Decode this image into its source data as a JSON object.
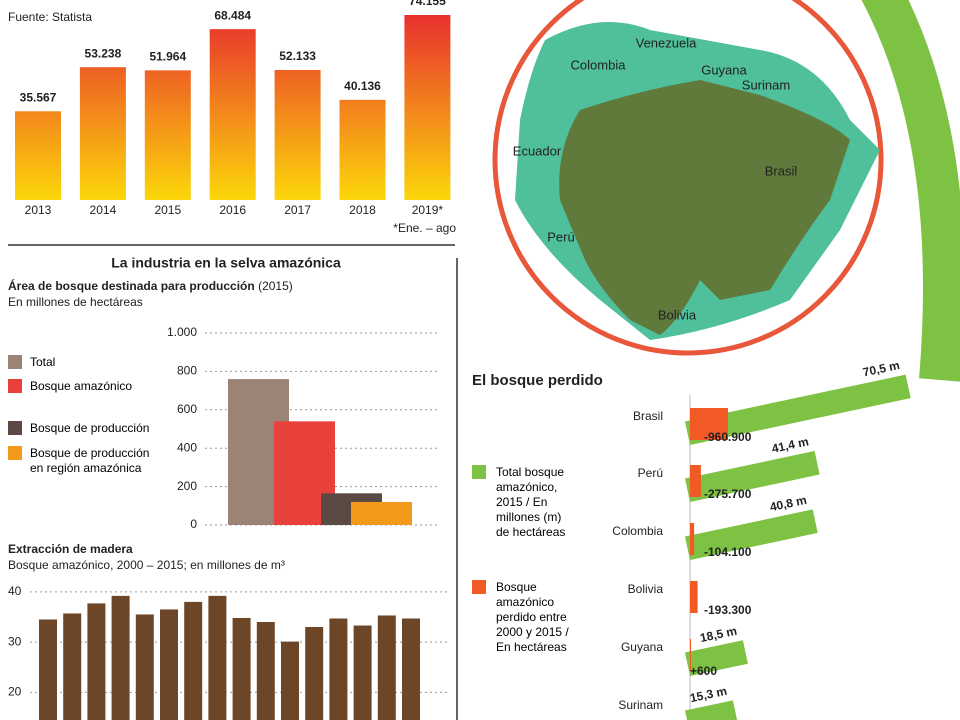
{
  "section_title": "La industria en la selva amazónica",
  "map": {
    "labels": [
      "Venezuela",
      "Colombia",
      "Guyana",
      "Surinam",
      "Ecuador",
      "Brasil",
      "Perú",
      "Bolivia"
    ]
  },
  "chart_data": [
    {
      "type": "bar",
      "source": "Fuente: Statista",
      "note": "*Ene. – ago",
      "categories": [
        "2013",
        "2014",
        "2015",
        "2016",
        "2017",
        "2018",
        "2019*"
      ],
      "values": [
        35567,
        53238,
        51964,
        68484,
        52133,
        40136,
        74155
      ],
      "value_labels": [
        "35.567",
        "53.238",
        "51.964",
        "68.484",
        "52.133",
        "40.136",
        "74.155"
      ],
      "color_top": "#e8302e",
      "color_bottom": "#fcd70a"
    },
    {
      "type": "bar",
      "title": "Área de bosque destinada para producción",
      "title_note": "(2015)",
      "subtitle": "En millones de hectáreas",
      "categories": [
        "Total",
        "Bosque amazónico",
        "Bosque de producción",
        "Bosque de producción en región amazónica"
      ],
      "values": [
        760,
        540,
        165,
        120
      ],
      "colors": [
        "#9b8376",
        "#e8403a",
        "#5b4a43",
        "#f39a1d"
      ],
      "ylim": [
        0,
        1000
      ],
      "yticks": [
        0,
        200,
        400,
        600,
        800,
        {
          "value": 1000,
          "label": "1.000"
        }
      ],
      "grid": true,
      "legend": "left"
    },
    {
      "type": "bar",
      "title": "Extracción de madera",
      "subtitle": "Bosque amazónico, 2000 – 2015; en millones de m³",
      "categories": [
        null,
        null,
        null,
        null,
        null,
        null,
        null,
        null,
        null,
        null,
        null,
        null,
        null,
        null,
        null,
        null
      ],
      "values": [
        34.5,
        35.7,
        37.7,
        39.2,
        35.5,
        36.5,
        38,
        39.2,
        34.8,
        34,
        30.1,
        33,
        34.7,
        33.3,
        35.3,
        34.7
      ],
      "color": "#6d4527",
      "ylim": [
        14.5,
        42
      ],
      "yticks": [
        20,
        30,
        40
      ],
      "grid": true
    },
    {
      "type": "slanted-bar",
      "title": "El bosque perdido",
      "categories": [
        "Brasil",
        "Perú",
        "Colombia",
        "Bolivia",
        "Guyana",
        "Surinam"
      ],
      "series": [
        {
          "name": "Total bosque amazónico, 2015 / En millones (m) de hectáreas",
          "color": "#7dc242",
          "values": [
            70.5,
            41.4,
            40.8,
            null,
            18.5,
            15.3
          ],
          "value_labels": [
            "70,5 m",
            "41,4 m",
            "40,8 m",
            null,
            "18,5 m",
            "15,3 m"
          ]
        },
        {
          "name": "Bosque amazónico perdido entre 2000 y 2015 / En hectáreas",
          "color": "#f15a24",
          "values": [
            -960900,
            -275700,
            -104100,
            -193300,
            600,
            null
          ],
          "value_labels": [
            "-960.900",
            "-275.700",
            "-104.100",
            "-193.300",
            "+600",
            null
          ]
        }
      ]
    }
  ]
}
